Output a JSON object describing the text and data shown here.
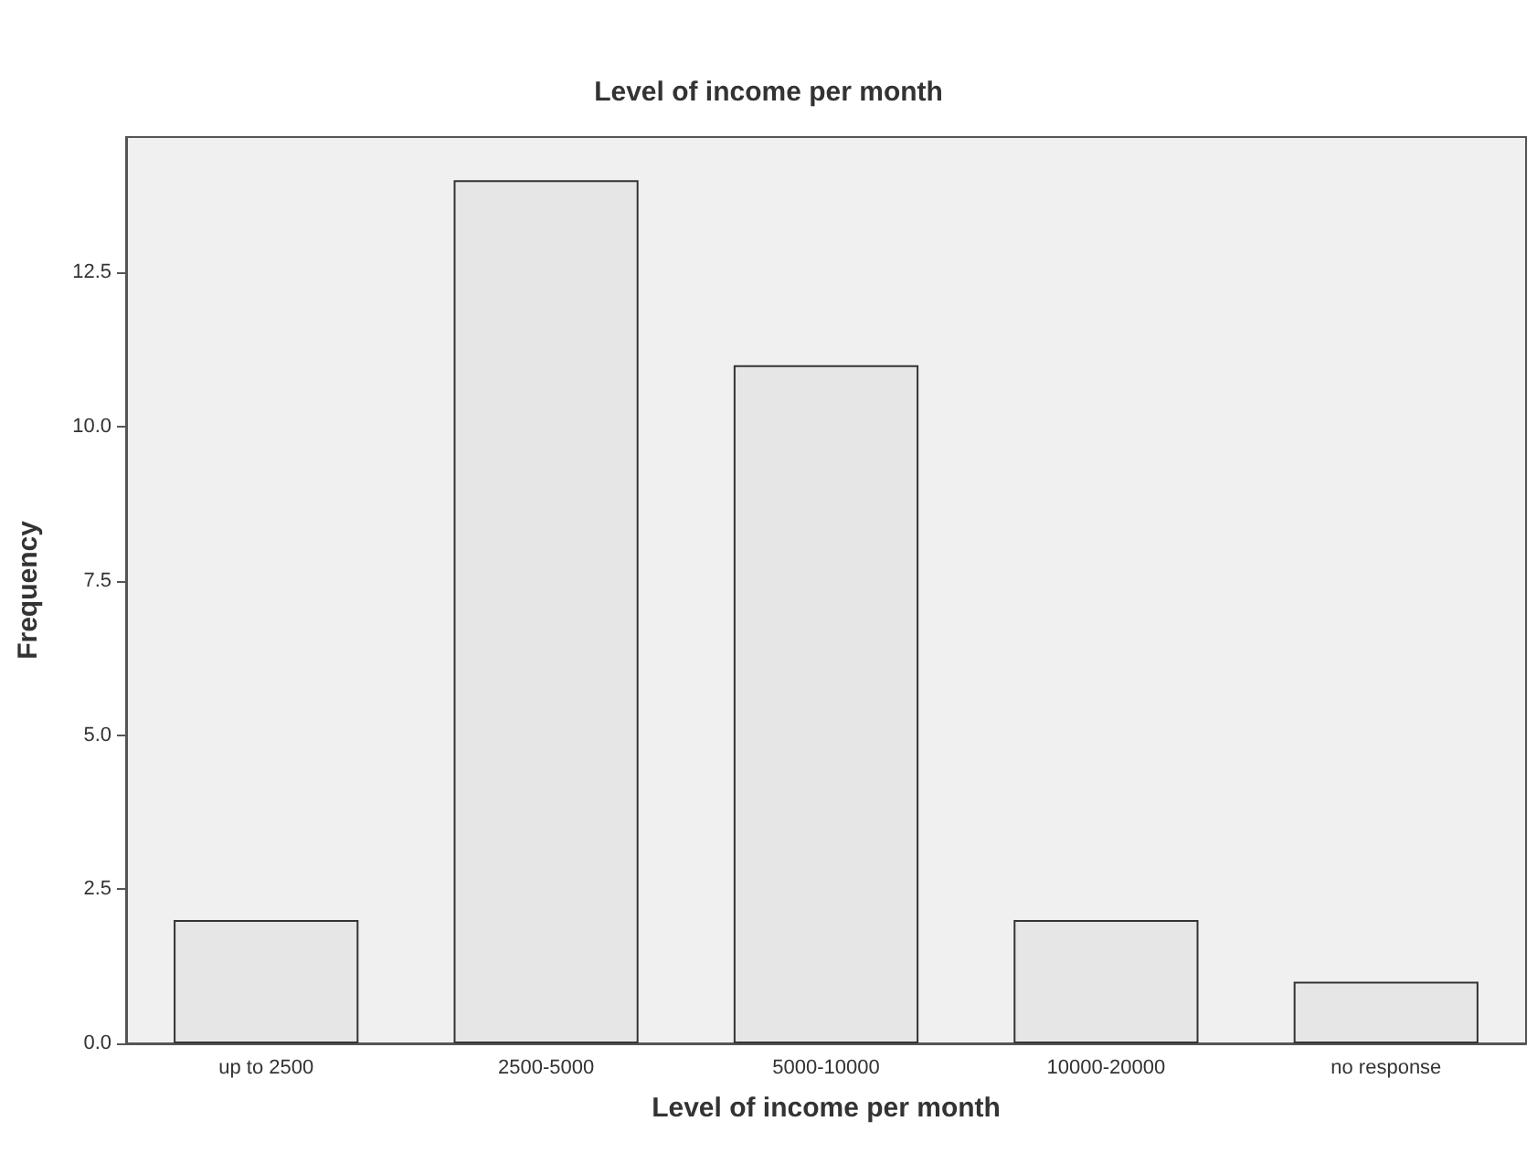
{
  "chart_data": {
    "type": "bar",
    "title": "Level of income per month",
    "xlabel": "Level of income per month",
    "ylabel": "Frequency",
    "categories": [
      "up to 2500",
      "2500-5000",
      "5000-10000",
      "10000-20000",
      "no response"
    ],
    "values": [
      2,
      14,
      11,
      2,
      1
    ],
    "color": "#e6e6e6",
    "ylim": [
      0,
      14.7
    ],
    "yticks": [
      {
        "value": 0,
        "label": "0.0"
      },
      {
        "value": 2.5,
        "label": "2.5"
      },
      {
        "value": 5,
        "label": "5.0"
      },
      {
        "value": 7.5,
        "label": "7.5"
      },
      {
        "value": 10,
        "label": "10.0"
      },
      {
        "value": 12.5,
        "label": "12.5"
      }
    ],
    "grid": false
  }
}
